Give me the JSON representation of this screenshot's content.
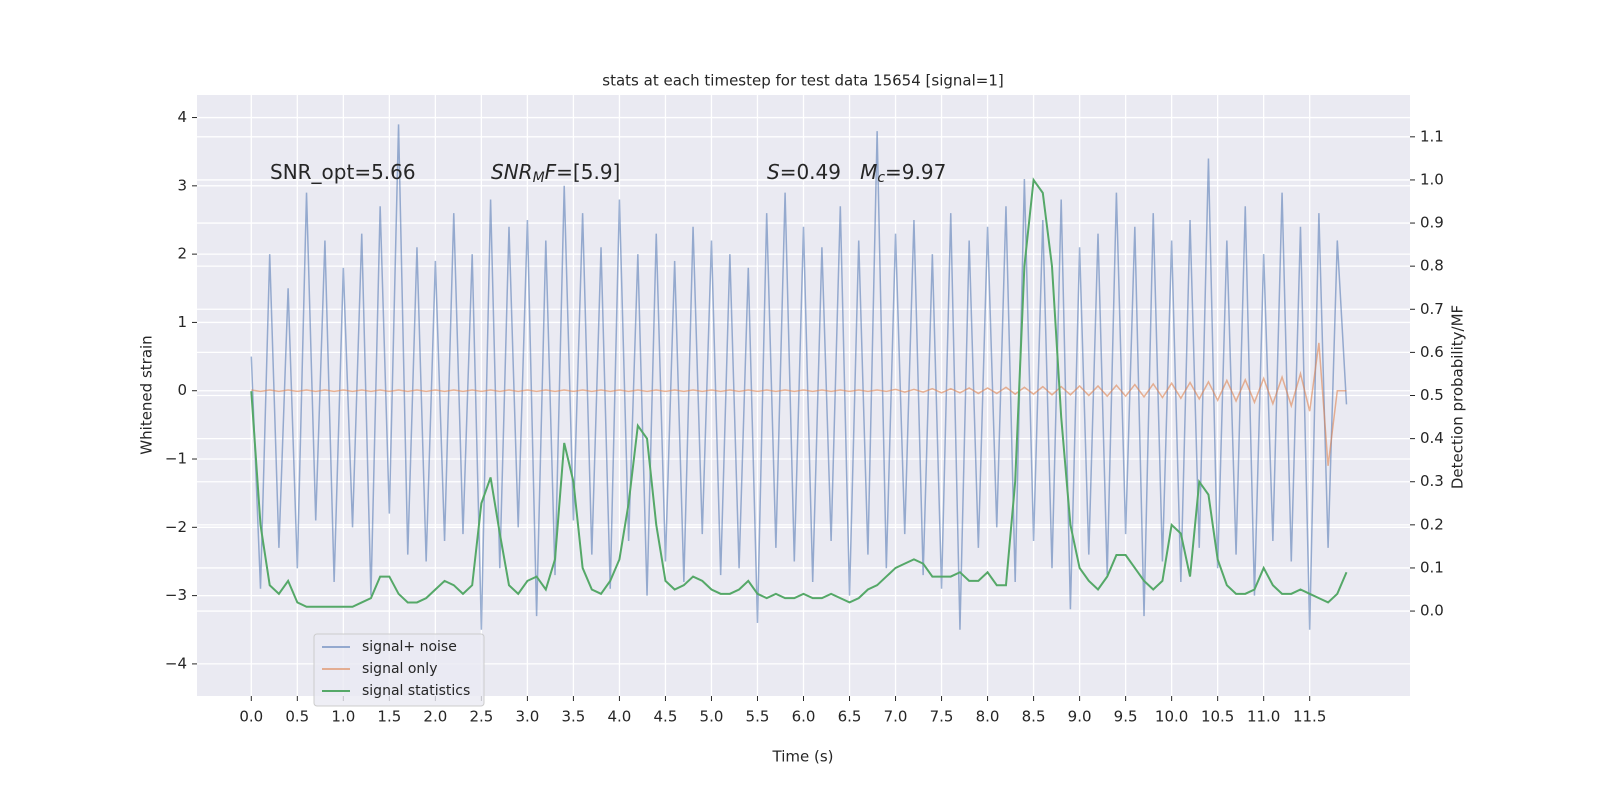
{
  "chart_data": {
    "type": "line",
    "title": "stats at each timestep for test data 15654 [signal=1]",
    "xlabel": "Time (s)",
    "ylabel": "Whitened strain",
    "y2label": "Detection probability/MF",
    "x": [
      0,
      0.1,
      0.2,
      0.3,
      0.4,
      0.5,
      0.6,
      0.7,
      0.8,
      0.9,
      1,
      1.1,
      1.2,
      1.3,
      1.4,
      1.5,
      1.6,
      1.7,
      1.8,
      1.9,
      2,
      2.1,
      2.2,
      2.3,
      2.4,
      2.5,
      2.6,
      2.7,
      2.8,
      2.9,
      3,
      3.1,
      3.2,
      3.3,
      3.4,
      3.5,
      3.6,
      3.7,
      3.8,
      3.9,
      4,
      4.1,
      4.2,
      4.3,
      4.4,
      4.5,
      4.6,
      4.7,
      4.8,
      4.9,
      5,
      5.1,
      5.2,
      5.3,
      5.4,
      5.5,
      5.6,
      5.7,
      5.8,
      5.9,
      6,
      6.1,
      6.2,
      6.3,
      6.4,
      6.5,
      6.6,
      6.7,
      6.8,
      6.9,
      7,
      7.1,
      7.2,
      7.3,
      7.4,
      7.5,
      7.6,
      7.7,
      7.8,
      7.9,
      8,
      8.1,
      8.2,
      8.3,
      8.4,
      8.5,
      8.6,
      8.7,
      8.8,
      8.9,
      9,
      9.1,
      9.2,
      9.3,
      9.4,
      9.5,
      9.6,
      9.7,
      9.8,
      9.9,
      10,
      10.1,
      10.2,
      10.3,
      10.4,
      10.5,
      10.6,
      10.7,
      10.8,
      10.9,
      11,
      11.1,
      11.2,
      11.3,
      11.4,
      11.5,
      11.6,
      11.7,
      11.8,
      11.9
    ],
    "series": [
      {
        "name": "signal+ noise",
        "color": "#4c72b0",
        "opacity": 0.55,
        "values": [
          0.5,
          -2.9,
          2.0,
          -2.3,
          1.5,
          -2.6,
          2.9,
          -1.9,
          2.2,
          -2.8,
          1.8,
          -2.0,
          2.3,
          -3.0,
          2.7,
          -1.8,
          3.9,
          -2.4,
          2.1,
          -2.5,
          1.9,
          -2.2,
          2.6,
          -2.1,
          2.0,
          -3.5,
          2.8,
          -2.6,
          2.4,
          -2.0,
          2.5,
          -3.3,
          2.2,
          -2.7,
          3.0,
          -1.9,
          2.6,
          -2.4,
          2.1,
          -2.9,
          2.8,
          -2.2,
          2.0,
          -3.0,
          2.3,
          -2.5,
          1.9,
          -2.8,
          2.4,
          -2.1,
          2.2,
          -2.7,
          2.0,
          -2.6,
          1.8,
          -3.4,
          2.6,
          -2.3,
          2.9,
          -2.5,
          2.4,
          -2.8,
          2.1,
          -2.2,
          2.7,
          -3.0,
          2.2,
          -2.4,
          3.8,
          -2.6,
          2.3,
          -2.1,
          2.5,
          -2.7,
          2.0,
          -2.9,
          2.6,
          -3.5,
          2.2,
          -2.3,
          2.4,
          -2.0,
          2.7,
          -2.8,
          3.1,
          -2.2,
          2.5,
          -2.6,
          2.8,
          -3.2,
          2.1,
          -2.4,
          2.3,
          -2.7,
          2.9,
          -2.1,
          2.4,
          -3.3,
          2.6,
          -2.5,
          2.2,
          -2.8,
          2.5,
          -2.3,
          3.4,
          -2.6,
          2.2,
          -2.4,
          2.7,
          -3.0,
          2.0,
          -2.2,
          2.9,
          -2.5,
          2.4,
          -3.5,
          2.6,
          -2.3,
          2.2,
          -0.2
        ]
      },
      {
        "name": "signal only",
        "color": "#dd8452",
        "opacity": 0.6,
        "values": [
          0.01,
          -0.01,
          0.01,
          -0.01,
          0.01,
          -0.01,
          0.01,
          -0.01,
          0.01,
          -0.01,
          0.01,
          -0.01,
          0.01,
          -0.01,
          0.01,
          -0.01,
          0.01,
          -0.01,
          0.01,
          -0.01,
          0.01,
          -0.01,
          0.01,
          -0.01,
          0.01,
          -0.01,
          0.01,
          -0.01,
          0.01,
          -0.01,
          0.01,
          -0.01,
          0.01,
          -0.01,
          0.01,
          -0.01,
          0.01,
          -0.01,
          0.01,
          -0.01,
          0.01,
          -0.01,
          0.01,
          -0.01,
          0.01,
          -0.01,
          0.01,
          -0.01,
          0.01,
          -0.01,
          0.01,
          -0.01,
          0.01,
          -0.01,
          0.01,
          -0.01,
          0.01,
          -0.01,
          0.01,
          -0.01,
          0.01,
          -0.01,
          0.01,
          -0.01,
          0.01,
          -0.01,
          0.01,
          -0.01,
          0.01,
          -0.01,
          0.02,
          -0.02,
          0.02,
          -0.02,
          0.03,
          -0.03,
          0.03,
          -0.03,
          0.04,
          -0.04,
          0.04,
          -0.04,
          0.05,
          -0.05,
          0.05,
          -0.05,
          0.06,
          -0.06,
          0.06,
          -0.06,
          0.07,
          -0.07,
          0.07,
          -0.08,
          0.08,
          -0.08,
          0.09,
          -0.09,
          0.1,
          -0.1,
          0.11,
          -0.11,
          0.12,
          -0.12,
          0.13,
          -0.14,
          0.15,
          -0.15,
          0.16,
          -0.17,
          0.18,
          -0.19,
          0.2,
          -0.22,
          0.25,
          -0.3,
          0.7,
          -1.1,
          0.0,
          0.0
        ]
      },
      {
        "name": "signal statistics",
        "color": "#55a868",
        "opacity": 1,
        "axis": "y2",
        "values": [
          0.51,
          0.2,
          0.06,
          0.04,
          0.07,
          0.02,
          0.01,
          0.01,
          0.01,
          0.01,
          0.01,
          0.01,
          0.02,
          0.03,
          0.08,
          0.08,
          0.04,
          0.02,
          0.02,
          0.03,
          0.05,
          0.07,
          0.06,
          0.04,
          0.06,
          0.25,
          0.31,
          0.18,
          0.06,
          0.04,
          0.07,
          0.08,
          0.05,
          0.12,
          0.39,
          0.3,
          0.1,
          0.05,
          0.04,
          0.07,
          0.12,
          0.25,
          0.43,
          0.4,
          0.2,
          0.07,
          0.05,
          0.06,
          0.08,
          0.07,
          0.05,
          0.04,
          0.04,
          0.05,
          0.07,
          0.04,
          0.03,
          0.04,
          0.03,
          0.03,
          0.04,
          0.03,
          0.03,
          0.04,
          0.03,
          0.02,
          0.03,
          0.05,
          0.06,
          0.08,
          0.1,
          0.11,
          0.12,
          0.11,
          0.08,
          0.08,
          0.08,
          0.09,
          0.07,
          0.07,
          0.09,
          0.06,
          0.06,
          0.3,
          0.8,
          1.0,
          0.97,
          0.8,
          0.45,
          0.2,
          0.1,
          0.07,
          0.05,
          0.08,
          0.13,
          0.13,
          0.1,
          0.07,
          0.05,
          0.07,
          0.2,
          0.18,
          0.08,
          0.3,
          0.27,
          0.12,
          0.06,
          0.04,
          0.04,
          0.05,
          0.1,
          0.06,
          0.04,
          0.04,
          0.05,
          0.04,
          0.03,
          0.02,
          0.04,
          0.09
        ]
      }
    ],
    "xlim": [
      -0.59,
      12.59
    ],
    "ylim": [
      -4.47,
      4.33
    ],
    "y2lim": [
      -0.197,
      1.197
    ],
    "xticks": [
      {
        "value": 0,
        "label": "0.0"
      },
      0.5,
      {
        "value": 1,
        "label": "1.0"
      },
      1.5,
      {
        "value": 2,
        "label": "2.0"
      },
      2.5,
      {
        "value": 3,
        "label": "3.0"
      },
      3.5,
      {
        "value": 4,
        "label": "4.0"
      },
      4.5,
      {
        "value": 5,
        "label": "5.0"
      },
      5.5,
      {
        "value": 6,
        "label": "6.0"
      },
      6.5,
      {
        "value": 7,
        "label": "7.0"
      },
      7.5,
      {
        "value": 8,
        "label": "8.0"
      },
      8.5,
      {
        "value": 9,
        "label": "9.0"
      },
      9.5,
      {
        "value": 10,
        "label": "10.0"
      },
      10.5,
      {
        "value": 11,
        "label": "11.0"
      },
      11.5
    ],
    "yticks": [
      {
        "value": -4,
        "label": "−4"
      },
      {
        "value": -3,
        "label": "−3"
      },
      {
        "value": -2,
        "label": "−2"
      },
      {
        "value": -1,
        "label": "−1"
      },
      0,
      1,
      2,
      3,
      4
    ],
    "y2ticks": [
      {
        "value": 0,
        "label": "0.0"
      },
      0.1,
      0.2,
      0.3,
      0.4,
      0.5,
      0.6,
      0.7,
      0.8,
      0.9,
      {
        "value": 1,
        "label": "1.0"
      },
      1.1
    ],
    "grid": true,
    "legend": "lower left",
    "annotations": [
      {
        "parts": [
          {
            "text": "SNR_opt=5.66"
          }
        ]
      },
      {
        "parts": [
          {
            "text": "SNR",
            "style": "italic"
          },
          {
            "text": "M",
            "style": "sub"
          },
          {
            "text": "F",
            "style": "italic"
          },
          {
            "text": "=[5.9]"
          }
        ]
      },
      {
        "parts": [
          {
            "text": "S",
            "style": "italic"
          },
          {
            "text": "=0.49   "
          },
          {
            "text": "M",
            "style": "italic"
          },
          {
            "text": "c",
            "style": "sub"
          },
          {
            "text": "=9.97"
          }
        ]
      }
    ]
  }
}
